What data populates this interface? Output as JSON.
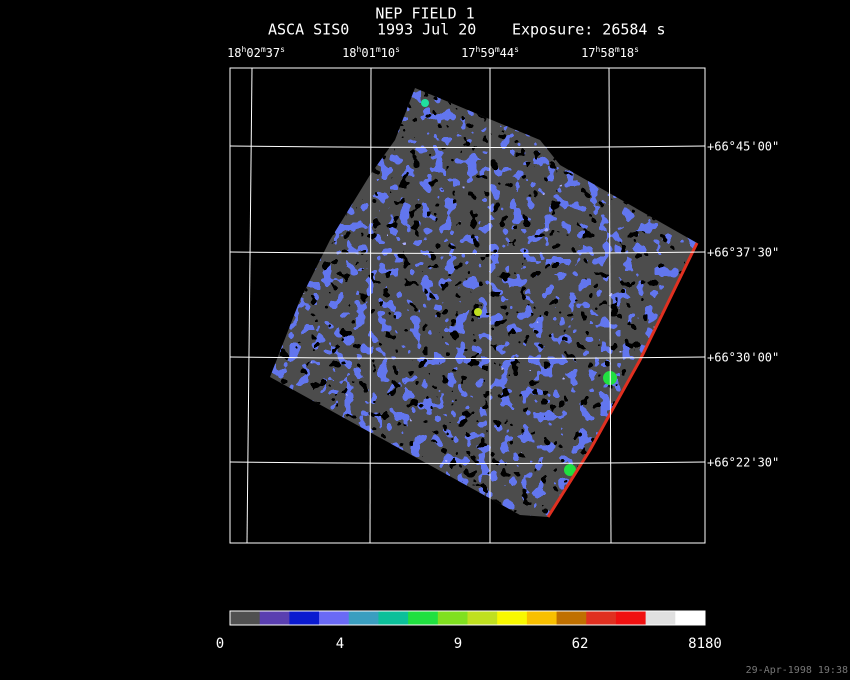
{
  "title": "NEP FIELD 1",
  "subtitle": {
    "instrument": "ASCA SIS0",
    "date": "1993 Jul 20",
    "exposure": "Exposure: 26584 s"
  },
  "ra_labels": [
    [
      "18",
      "h",
      "02",
      "m",
      "37",
      "s"
    ],
    [
      "18",
      "h",
      "01",
      "m",
      "10",
      "s"
    ],
    [
      "17",
      "h",
      "59",
      "m",
      "44",
      "s"
    ],
    [
      "17",
      "h",
      "58",
      "m",
      "18",
      "s"
    ]
  ],
  "dec_labels": [
    "+66°45'00\"",
    "+66°37'30\"",
    "+66°30'00\"",
    "+66°22'30\""
  ],
  "colorbar_labels": [
    "0",
    "4",
    "9",
    "62",
    "8180"
  ],
  "timestamp": "29-Apr-1998 19:38"
}
